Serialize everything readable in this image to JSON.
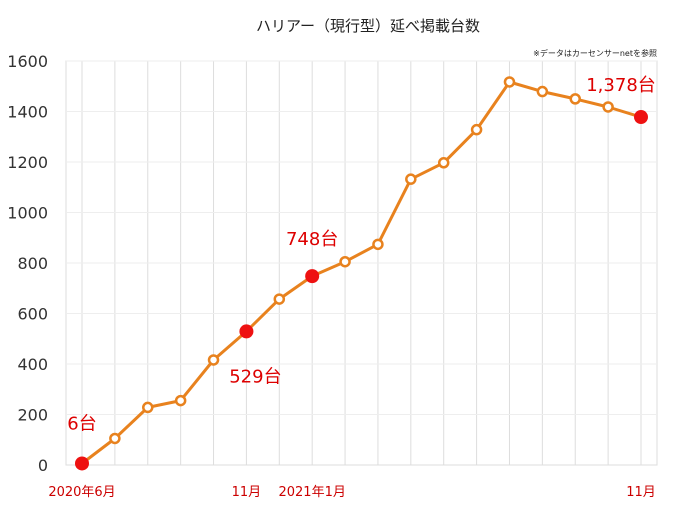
{
  "chart_data": {
    "type": "line",
    "title": "ハリアー（現行型）延べ掲載台数",
    "note": "※データはカーセンサーnetを参照",
    "ylim": [
      0,
      1600
    ],
    "yticks": [
      "0",
      "200",
      "400",
      "600",
      "800",
      "1000",
      "1200",
      "1400",
      "1600"
    ],
    "xtick_labels": [
      {
        "index": 0,
        "label": "2020年6月"
      },
      {
        "index": 5,
        "label": "11月"
      },
      {
        "index": 7,
        "label": "2021年1月"
      },
      {
        "index": 17,
        "label": "11月"
      }
    ],
    "series": [
      {
        "values": [
          6,
          105,
          228,
          255,
          416,
          529,
          657,
          748,
          805,
          874,
          1132,
          1197,
          1328,
          1517,
          1479,
          1450,
          1418,
          1378
        ]
      }
    ],
    "highlights": [
      0,
      5,
      7,
      17
    ],
    "data_labels": [
      {
        "index": 0,
        "text": "6台"
      },
      {
        "index": 5,
        "text": "529台"
      },
      {
        "index": 7,
        "text": "748台"
      },
      {
        "index": 17,
        "text": "1,378台"
      }
    ],
    "grid": true,
    "colors": {
      "line": "#e8821e",
      "highlight": "#ee1111",
      "label": "#dd0000",
      "xtick": "#cc0000"
    }
  }
}
